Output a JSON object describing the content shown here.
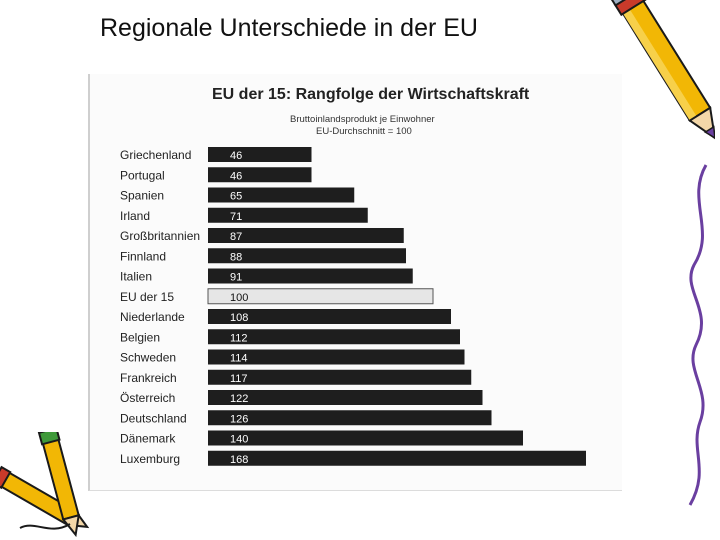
{
  "slide": {
    "title": "Regionale Unterschiede in der EU"
  },
  "icons": [
    "pencil-icon",
    "pencil-cluster-icon"
  ],
  "colors": {
    "bar": "#1e1e1e",
    "highlight_bar": "#e6e6e6",
    "bar_text": "#ffffff",
    "highlight_text": "#111111"
  },
  "chart_data": {
    "type": "bar",
    "orientation": "horizontal",
    "title": "EU der 15: Rangfolge der Wirtschaftskraft",
    "subtitle": [
      "Bruttoinlandsprodukt je Einwohner",
      "EU-Durchschnitt = 100"
    ],
    "categories": [
      "Griechenland",
      "Portugal",
      "Spanien",
      "Irland",
      "Großbritannien",
      "Finnland",
      "Italien",
      "EU der 15",
      "Niederlande",
      "Belgien",
      "Schweden",
      "Frankreich",
      "Österreich",
      "Deutschland",
      "Dänemark",
      "Luxemburg"
    ],
    "values": [
      46,
      46,
      65,
      71,
      87,
      88,
      91,
      100,
      108,
      112,
      114,
      117,
      122,
      126,
      140,
      168
    ],
    "highlight": "EU der 15",
    "xlim": [
      0,
      168
    ],
    "grid": false,
    "legend": "none"
  }
}
